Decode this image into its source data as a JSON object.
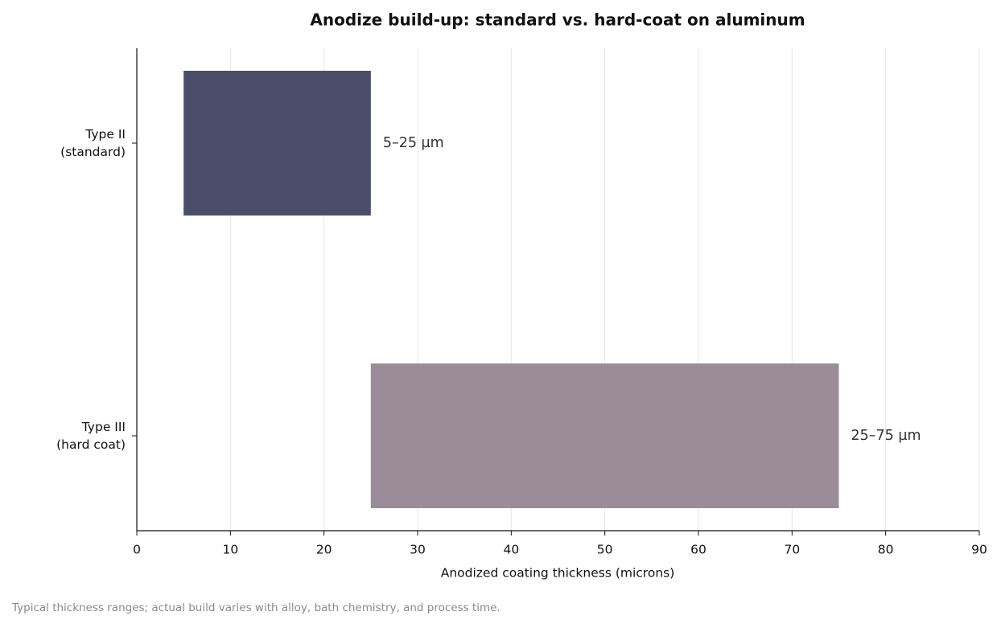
{
  "chart_data": {
    "type": "range-bar",
    "title": "Anodize build-up: standard vs. hard-coat on aluminum",
    "categories": [
      "Type II\n(standard)",
      "Type III\n(hard coat)"
    ],
    "starts": [
      5,
      25
    ],
    "ends": [
      25,
      75
    ],
    "value_labels": [
      "5–25 µm",
      "25–75 µm"
    ],
    "colors": [
      "#4a4e69",
      "#9a8c98"
    ],
    "xlabel": "Anodized coating thickness (microns)",
    "xlim": [
      0,
      90
    ],
    "xticks": [
      0,
      10,
      20,
      30,
      40,
      50,
      60,
      70,
      80,
      90
    ],
    "grid": true,
    "note": "Typical thickness ranges; actual build varies with alloy, bath chemistry, and process time."
  }
}
